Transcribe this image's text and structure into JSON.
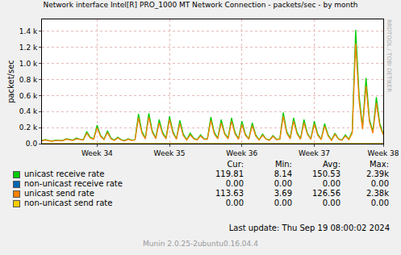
{
  "chart_data": {
    "type": "line",
    "title": "Network interface Intel[R] PRO_1000 MT Network Connection - packets/sec - by month",
    "y_label": "packet/sec",
    "categories": [
      null,
      null,
      null,
      null,
      null,
      null,
      null,
      null,
      null,
      null,
      null,
      null,
      null,
      null,
      null,
      null,
      "Week 34",
      null,
      null,
      null,
      null,
      null,
      null,
      null,
      null,
      null,
      null,
      null,
      null,
      null,
      null,
      null,
      null,
      null,
      null,
      null,
      null,
      "Week 35",
      null,
      null,
      null,
      null,
      null,
      null,
      null,
      null,
      null,
      null,
      null,
      null,
      null,
      null,
      null,
      null,
      null,
      null,
      null,
      null,
      "Week 36",
      null,
      null,
      null,
      null,
      null,
      null,
      null,
      null,
      null,
      null,
      null,
      null,
      null,
      null,
      null,
      null,
      null,
      null,
      null,
      null,
      "Week 37",
      null,
      null,
      null,
      null,
      null,
      null,
      null,
      null,
      null,
      null,
      null,
      null,
      null,
      null,
      null,
      null,
      null,
      null,
      null,
      "Week 38"
    ],
    "series": [
      {
        "name": "unicast receive rate",
        "color": "#00cc00",
        "values": [
          40,
          50,
          40,
          35,
          45,
          40,
          40,
          60,
          50,
          45,
          70,
          55,
          50,
          150,
          80,
          60,
          230,
          100,
          55,
          160,
          70,
          45,
          80,
          50,
          40,
          60,
          45,
          50,
          370,
          150,
          70,
          380,
          160,
          70,
          300,
          140,
          70,
          340,
          150,
          60,
          290,
          120,
          50,
          130,
          70,
          50,
          110,
          60,
          60,
          330,
          140,
          70,
          300,
          130,
          70,
          320,
          140,
          60,
          280,
          120,
          60,
          260,
          110,
          50,
          120,
          60,
          45,
          100,
          55,
          60,
          390,
          150,
          70,
          320,
          140,
          60,
          300,
          130,
          60,
          280,
          120,
          55,
          250,
          110,
          45,
          130,
          60,
          45,
          110,
          55,
          150,
          1420,
          600,
          200,
          820,
          300,
          150,
          580,
          250,
          120
        ]
      },
      {
        "name": "non-unicast receive rate",
        "color": "#0066b3",
        "values": [
          0,
          0,
          0,
          0,
          0,
          0,
          0,
          0,
          0,
          0,
          0,
          0,
          0,
          0,
          0,
          0,
          0,
          0,
          0,
          0,
          0,
          0,
          0,
          0,
          0,
          0,
          0,
          0,
          0,
          0,
          0,
          0,
          0,
          0,
          0,
          0,
          0,
          0,
          0,
          0,
          0,
          0,
          0,
          0,
          0,
          0,
          0,
          0,
          0,
          0,
          0,
          0,
          0,
          0,
          0,
          0,
          0,
          0,
          0,
          0,
          0,
          0,
          0,
          0,
          0,
          0,
          0,
          0,
          0,
          0,
          0,
          0,
          0,
          0,
          0,
          0,
          0,
          0,
          0,
          0,
          0,
          0,
          0,
          0,
          0,
          0,
          0,
          0,
          0,
          0,
          0,
          0,
          0,
          0,
          0,
          0,
          0,
          0,
          0,
          0
        ]
      },
      {
        "name": "unicast send rate",
        "color": "#ff8000",
        "values": [
          35,
          45,
          35,
          30,
          40,
          35,
          35,
          55,
          45,
          40,
          60,
          50,
          45,
          130,
          70,
          55,
          200,
          90,
          50,
          140,
          60,
          40,
          70,
          45,
          35,
          55,
          40,
          45,
          320,
          130,
          60,
          330,
          140,
          60,
          260,
          120,
          60,
          300,
          130,
          55,
          250,
          100,
          45,
          110,
          60,
          45,
          95,
          55,
          55,
          290,
          120,
          60,
          260,
          115,
          60,
          280,
          120,
          55,
          240,
          105,
          55,
          225,
          95,
          45,
          105,
          55,
          40,
          90,
          50,
          55,
          340,
          130,
          60,
          280,
          120,
          55,
          260,
          115,
          55,
          245,
          105,
          50,
          220,
          95,
          40,
          115,
          55,
          40,
          95,
          50,
          130,
          1250,
          530,
          180,
          720,
          270,
          130,
          510,
          220,
          114
        ]
      },
      {
        "name": "non-unicast send rate",
        "color": "#ffcc00",
        "values": [
          0,
          0,
          0,
          0,
          0,
          0,
          0,
          0,
          0,
          0,
          0,
          0,
          0,
          0,
          0,
          0,
          0,
          0,
          0,
          0,
          0,
          0,
          0,
          0,
          0,
          0,
          0,
          0,
          0,
          0,
          0,
          0,
          0,
          0,
          0,
          0,
          0,
          0,
          0,
          0,
          0,
          0,
          0,
          0,
          0,
          0,
          0,
          0,
          0,
          0,
          0,
          0,
          0,
          0,
          0,
          0,
          0,
          0,
          0,
          0,
          0,
          0,
          0,
          0,
          0,
          0,
          0,
          0,
          0,
          0,
          0,
          0,
          0,
          0,
          0,
          0,
          0,
          0,
          0,
          0,
          0,
          0,
          0,
          0,
          0,
          0,
          0,
          0,
          0,
          0,
          0,
          0,
          0,
          0,
          0,
          0,
          0,
          0,
          0,
          0
        ]
      }
    ],
    "ylim": [
      0,
      1550
    ],
    "yticks": [
      {
        "value": 0,
        "label": "0.0"
      },
      {
        "value": 200,
        "label": "0.2 k"
      },
      {
        "value": 400,
        "label": "0.4 k"
      },
      {
        "value": 600,
        "label": "0.6 k"
      },
      {
        "value": 800,
        "label": "0.8 k"
      },
      {
        "value": 1000,
        "label": "1.0 k"
      },
      {
        "value": 1200,
        "label": "1.2 k"
      },
      {
        "value": 1400,
        "label": "1.4 k"
      }
    ],
    "grid": true,
    "legend": "bottom",
    "legend_table": {
      "columns": [
        "Cur:",
        "Min:",
        "Avg:",
        "Max:"
      ],
      "rows": [
        [
          "119.81",
          "8.14",
          "150.53",
          "2.39k"
        ],
        [
          "0.00",
          "0.00",
          "0.00",
          "0.00"
        ],
        [
          "113.63",
          "3.69",
          "126.56",
          "2.38k"
        ],
        [
          "0.00",
          "0.00",
          "0.00",
          "0.00"
        ]
      ]
    },
    "last_update": "Last update:  Thu Sep 19 08:00:02 2024",
    "footer": "Munin 2.0.25-2ubuntu0.16.04.4",
    "watermark": "RRDTOOL / TOBI OETIKER"
  }
}
